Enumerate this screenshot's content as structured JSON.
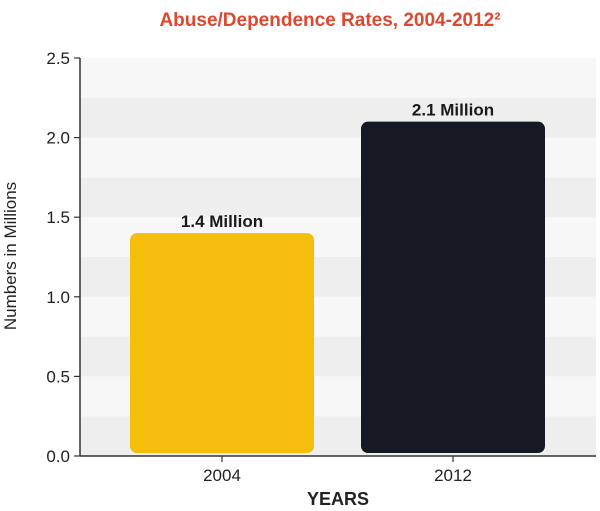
{
  "chart_data": {
    "type": "bar",
    "title": "Abuse/Dependence Rates, 2004-2012²",
    "xlabel": "YEARS",
    "ylabel": "Numbers in Millions",
    "categories": [
      "2004",
      "2012"
    ],
    "values": [
      1.4,
      2.1
    ],
    "data_labels": [
      "1.4 Million",
      "2.1 Million"
    ],
    "bar_colors": [
      "#f5bd0c",
      "#151a22"
    ],
    "ylim": [
      0,
      2.5
    ],
    "yticks": [
      0.0,
      0.5,
      1.0,
      1.5,
      2.0,
      2.5
    ],
    "ytick_labels": [
      "0.0",
      "0.5",
      "1.0",
      "1.5",
      "2.0",
      "2.5"
    ],
    "grid": "alternating horizontal bands",
    "legend": "none"
  },
  "colors": {
    "title": "#e0472f",
    "band_dark": "#eeeeee",
    "band_light": "#f7f7f7",
    "axis": "#333333"
  }
}
